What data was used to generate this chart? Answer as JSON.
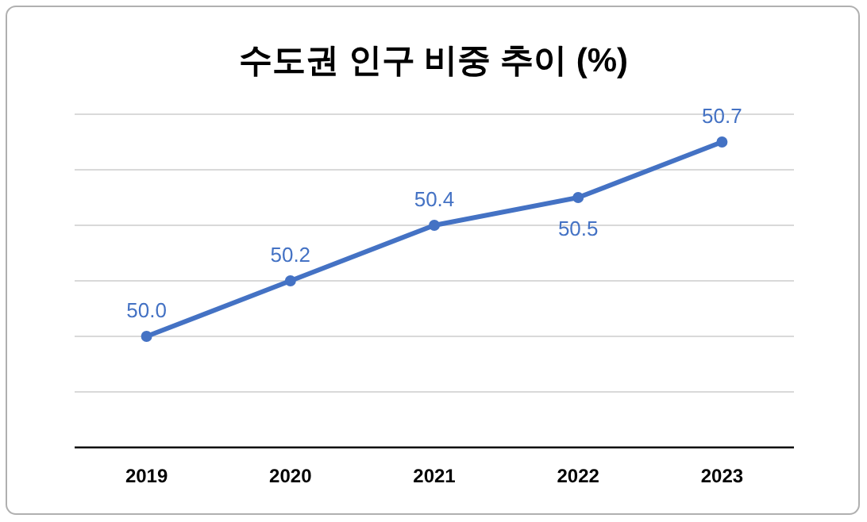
{
  "chart_data": {
    "type": "line",
    "title": "수도권 인구 비중 추이 (%)",
    "categories": [
      "2019",
      "2020",
      "2021",
      "2022",
      "2023"
    ],
    "series": [
      {
        "color": "#4472c4",
        "values": [
          50.0,
          50.2,
          50.4,
          50.5,
          50.7
        ],
        "value_labels": [
          "50.0",
          "50.2",
          "50.4",
          "50.5",
          "50.7"
        ]
      }
    ],
    "ylim": [
      49.6,
      50.8
    ],
    "yticks": [
      {
        "value": 49.6,
        "label": null
      },
      {
        "value": 49.8,
        "label": null
      },
      {
        "value": 50.0,
        "label": null
      },
      {
        "value": 50.2,
        "label": null
      },
      {
        "value": 50.4,
        "label": null
      },
      {
        "value": 50.6,
        "label": null
      },
      {
        "value": 50.8,
        "label": null
      }
    ],
    "tick_labels": "x",
    "grid": "y",
    "marker": "circle",
    "line_style": "solid"
  }
}
